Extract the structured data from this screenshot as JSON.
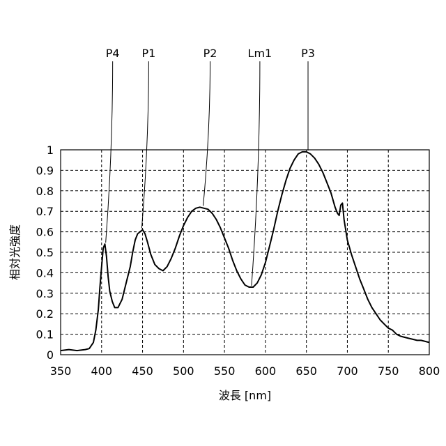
{
  "chart_data": {
    "type": "line",
    "xlabel": "波長 [nm]",
    "ylabel": "相対光強度",
    "xlim": [
      350,
      800
    ],
    "ylim": [
      0,
      1
    ],
    "xticks": [
      350,
      400,
      450,
      500,
      550,
      600,
      650,
      700,
      750,
      800
    ],
    "yticks": [
      0,
      0.1,
      0.2,
      0.3,
      0.4,
      0.5,
      0.6,
      0.7,
      0.8,
      0.9,
      1
    ],
    "ytick_labels": [
      "0",
      "0.1",
      "0.2",
      "0.3",
      "0.4",
      "0.5",
      "0.6",
      "0.7",
      "0.8",
      "0.9",
      "1"
    ],
    "grid": true,
    "series": [
      {
        "x": [
          350,
          360,
          370,
          380,
          385,
          390,
          393,
          396,
          398,
          400,
          402,
          404,
          406,
          408,
          410,
          413,
          416,
          420,
          425,
          430,
          435,
          438,
          441,
          444,
          447,
          450,
          453,
          456,
          460,
          465,
          470,
          475,
          480,
          485,
          490,
          495,
          500,
          505,
          510,
          515,
          520,
          525,
          530,
          535,
          540,
          545,
          550,
          555,
          560,
          565,
          570,
          575,
          580,
          585,
          590,
          595,
          600,
          605,
          610,
          615,
          620,
          625,
          630,
          635,
          640,
          645,
          650,
          655,
          660,
          665,
          670,
          675,
          680,
          685,
          688,
          690,
          692,
          694,
          696,
          700,
          705,
          710,
          715,
          720,
          725,
          730,
          735,
          740,
          745,
          750,
          755,
          760,
          765,
          770,
          775,
          780,
          785,
          790,
          795,
          800
        ],
        "y": [
          0.02,
          0.025,
          0.02,
          0.025,
          0.03,
          0.06,
          0.12,
          0.22,
          0.33,
          0.43,
          0.52,
          0.54,
          0.48,
          0.38,
          0.31,
          0.26,
          0.23,
          0.23,
          0.27,
          0.35,
          0.43,
          0.5,
          0.56,
          0.59,
          0.6,
          0.61,
          0.59,
          0.55,
          0.49,
          0.44,
          0.42,
          0.41,
          0.43,
          0.47,
          0.52,
          0.58,
          0.63,
          0.67,
          0.7,
          0.715,
          0.72,
          0.715,
          0.71,
          0.69,
          0.66,
          0.62,
          0.57,
          0.52,
          0.46,
          0.41,
          0.37,
          0.34,
          0.33,
          0.33,
          0.35,
          0.39,
          0.45,
          0.53,
          0.61,
          0.7,
          0.78,
          0.85,
          0.91,
          0.95,
          0.98,
          0.99,
          0.99,
          0.98,
          0.96,
          0.93,
          0.89,
          0.84,
          0.79,
          0.72,
          0.69,
          0.68,
          0.73,
          0.74,
          0.66,
          0.56,
          0.49,
          0.43,
          0.37,
          0.32,
          0.27,
          0.23,
          0.2,
          0.17,
          0.15,
          0.13,
          0.12,
          0.1,
          0.09,
          0.085,
          0.08,
          0.075,
          0.07,
          0.07,
          0.065,
          0.06
        ]
      }
    ],
    "annotations": [
      {
        "label": "P4",
        "x": 405,
        "y": 0.54
      },
      {
        "label": "P1",
        "x": 449,
        "y": 0.61
      },
      {
        "label": "P2",
        "x": 524,
        "y": 0.72
      },
      {
        "label": "Lm1",
        "x": 583,
        "y": 0.33
      },
      {
        "label": "P3",
        "x": 652,
        "y": 0.99
      }
    ]
  }
}
